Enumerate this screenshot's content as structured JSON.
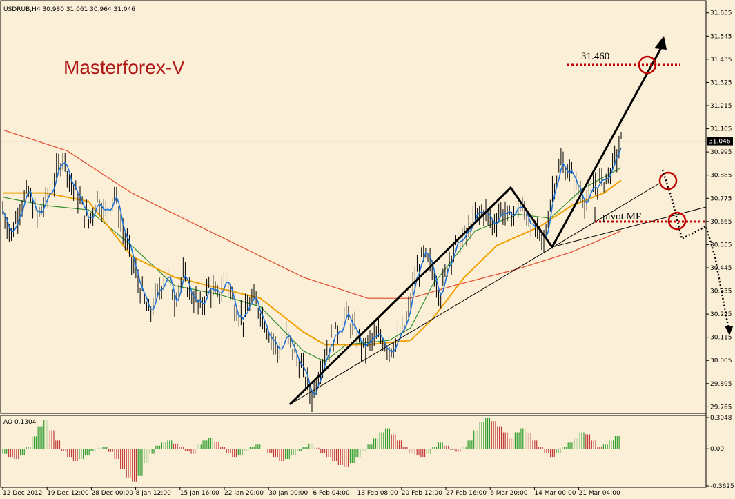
{
  "window": {
    "symbol_header": "USDRUB,H4  30.980 31.061 30.964 31.046",
    "watermark": "Masterforex-V"
  },
  "colors": {
    "background": "#fbf0d7",
    "price_bars": "#000000",
    "ma_fast": "#1e73d8",
    "ma_green": "#2f8f2f",
    "ma_orange": "#f0a000",
    "ma_red": "#e0482c",
    "annotation_red": "#c00000",
    "ao_up": "#2e9d2e",
    "ao_down": "#c23a3a"
  },
  "chart_data": [
    {
      "type": "line",
      "panel": "main",
      "title": "USDRUB,H4",
      "ohlc_header": {
        "open": 30.98,
        "high": 31.061,
        "low": 30.964,
        "close": 31.046
      },
      "current_price_label": "31.046",
      "ylim": [
        29.76,
        31.7
      ],
      "y_ticks": [
        "31.655",
        "31.545",
        "31.435",
        "31.325",
        "31.215",
        "31.105",
        "30.995",
        "30.885",
        "30.775",
        "30.665",
        "30.555",
        "30.445",
        "30.335",
        "30.225",
        "30.115",
        "30.005",
        "29.895",
        "29.785"
      ],
      "x_ticks": [
        "12 Dec 2012",
        "19 Dec 12:00",
        "28 Dec 00:00",
        "8 Jan 12:00",
        "15 Jan 16:00",
        "22 Jan 20:00",
        "30 Jan 00:00",
        "6 Feb 04:00",
        "13 Feb 08:00",
        "20 Feb 12:00",
        "27 Feb 16:00",
        "6 Mar 20:00",
        "14 Mar 00:00",
        "21 Mar 04:00"
      ],
      "price_path": [
        [
          0,
          30.72
        ],
        [
          4,
          30.6
        ],
        [
          8,
          30.74
        ],
        [
          12,
          30.8
        ],
        [
          16,
          30.68
        ],
        [
          20,
          30.76
        ],
        [
          24,
          30.86
        ],
        [
          28,
          30.98
        ],
        [
          32,
          30.84
        ],
        [
          36,
          30.76
        ],
        [
          40,
          30.66
        ],
        [
          44,
          30.78
        ],
        [
          48,
          30.7
        ],
        [
          52,
          30.8
        ],
        [
          56,
          30.62
        ],
        [
          60,
          30.48
        ],
        [
          64,
          30.35
        ],
        [
          68,
          30.22
        ],
        [
          72,
          30.32
        ],
        [
          76,
          30.42
        ],
        [
          80,
          30.3
        ],
        [
          84,
          30.4
        ],
        [
          88,
          30.32
        ],
        [
          92,
          30.25
        ],
        [
          96,
          30.36
        ],
        [
          100,
          30.3
        ],
        [
          104,
          30.4
        ],
        [
          108,
          30.27
        ],
        [
          112,
          30.2
        ],
        [
          116,
          30.3
        ],
        [
          120,
          30.24
        ],
        [
          124,
          30.14
        ],
        [
          128,
          30.05
        ],
        [
          132,
          30.12
        ],
        [
          136,
          30.04
        ],
        [
          140,
          29.95
        ],
        [
          144,
          29.83
        ],
        [
          148,
          29.98
        ],
        [
          152,
          30.08
        ],
        [
          156,
          30.15
        ],
        [
          160,
          30.22
        ],
        [
          164,
          30.14
        ],
        [
          168,
          30.06
        ],
        [
          172,
          30.1
        ],
        [
          176,
          30.12
        ],
        [
          180,
          30.06
        ],
        [
          184,
          30.1
        ],
        [
          188,
          30.18
        ],
        [
          192,
          30.4
        ],
        [
          196,
          30.5
        ],
        [
          200,
          30.44
        ],
        [
          204,
          30.32
        ],
        [
          208,
          30.5
        ],
        [
          212,
          30.56
        ],
        [
          216,
          30.6
        ],
        [
          220,
          30.68
        ],
        [
          224,
          30.72
        ],
        [
          228,
          30.65
        ],
        [
          232,
          30.72
        ],
        [
          236,
          30.68
        ],
        [
          240,
          30.74
        ],
        [
          244,
          30.7
        ],
        [
          248,
          30.62
        ],
        [
          252,
          30.56
        ],
        [
          256,
          30.82
        ],
        [
          260,
          30.94
        ],
        [
          264,
          30.9
        ],
        [
          268,
          30.82
        ],
        [
          272,
          30.76
        ],
        [
          276,
          30.84
        ],
        [
          280,
          30.86
        ],
        [
          284,
          30.92
        ],
        [
          288,
          31.046
        ]
      ],
      "moving_averages": [
        {
          "color": "ma_green",
          "values": [
            [
              0,
              30.78
            ],
            [
              20,
              30.74
            ],
            [
              40,
              30.72
            ],
            [
              60,
              30.55
            ],
            [
              80,
              30.36
            ],
            [
              100,
              30.32
            ],
            [
              120,
              30.26
            ],
            [
              140,
              30.05
            ],
            [
              150,
              30.0
            ],
            [
              160,
              30.08
            ],
            [
              180,
              30.1
            ],
            [
              190,
              30.16
            ],
            [
              200,
              30.36
            ],
            [
              220,
              30.62
            ],
            [
              240,
              30.7
            ],
            [
              255,
              30.68
            ],
            [
              270,
              30.82
            ],
            [
              288,
              30.92
            ]
          ]
        },
        {
          "color": "ma_orange",
          "values": [
            [
              0,
              30.8
            ],
            [
              20,
              30.8
            ],
            [
              40,
              30.76
            ],
            [
              60,
              30.5
            ],
            [
              80,
              30.4
            ],
            [
              100,
              30.35
            ],
            [
              120,
              30.3
            ],
            [
              140,
              30.14
            ],
            [
              150,
              30.08
            ],
            [
              170,
              30.08
            ],
            [
              190,
              30.1
            ],
            [
              200,
              30.2
            ],
            [
              215,
              30.4
            ],
            [
              230,
              30.55
            ],
            [
              250,
              30.64
            ],
            [
              265,
              30.74
            ],
            [
              280,
              30.8
            ],
            [
              288,
              30.86
            ]
          ]
        },
        {
          "color": "ma_red",
          "values": [
            [
              0,
              31.1
            ],
            [
              30,
              31.0
            ],
            [
              60,
              30.8
            ],
            [
              100,
              30.6
            ],
            [
              140,
              30.4
            ],
            [
              170,
              30.3
            ],
            [
              190,
              30.3
            ],
            [
              210,
              30.36
            ],
            [
              240,
              30.44
            ],
            [
              265,
              30.52
            ],
            [
              288,
              30.62
            ]
          ]
        }
      ],
      "levels": [
        {
          "label": "31.460",
          "value": 31.435
        },
        {
          "label": "pivot MF",
          "value": 30.675
        }
      ]
    },
    {
      "type": "bar",
      "panel": "oscillator",
      "title": "AO 0.1304",
      "ylim": [
        -0.3625,
        0.3048
      ],
      "y_ticks": [
        "0.3048",
        "0.00",
        "-0.3625"
      ],
      "values": [
        -0.05,
        -0.08,
        -0.1,
        -0.06,
        0.02,
        0.12,
        0.22,
        0.28,
        0.18,
        0.08,
        -0.02,
        -0.08,
        -0.12,
        -0.1,
        -0.06,
        -0.02,
        0.01,
        0.02,
        -0.03,
        -0.1,
        -0.2,
        -0.28,
        -0.32,
        -0.26,
        -0.14,
        -0.05,
        0.03,
        0.06,
        0.08,
        0.05,
        0.02,
        -0.02,
        -0.05,
        0.04,
        0.08,
        0.11,
        0.07,
        0.02,
        -0.04,
        -0.08,
        -0.06,
        -0.02,
        0.02,
        0.04,
        0.0,
        -0.04,
        -0.08,
        -0.12,
        -0.1,
        -0.06,
        -0.02,
        0.02,
        0.05,
        0.01,
        -0.04,
        -0.08,
        -0.12,
        -0.16,
        -0.18,
        -0.14,
        -0.08,
        -0.02,
        0.04,
        0.1,
        0.16,
        0.2,
        0.14,
        0.08,
        0.02,
        -0.04,
        -0.06,
        -0.08,
        -0.05,
        0.02,
        0.06,
        0.03,
        -0.01,
        -0.03,
        0.02,
        0.08,
        0.18,
        0.26,
        0.3,
        0.27,
        0.22,
        0.16,
        0.1,
        0.16,
        0.2,
        0.15,
        0.08,
        0.02,
        -0.04,
        -0.08,
        -0.04,
        0.02,
        0.06,
        0.1,
        0.16,
        0.14,
        0.08,
        0.02,
        0.04,
        0.08,
        0.13
      ]
    }
  ]
}
